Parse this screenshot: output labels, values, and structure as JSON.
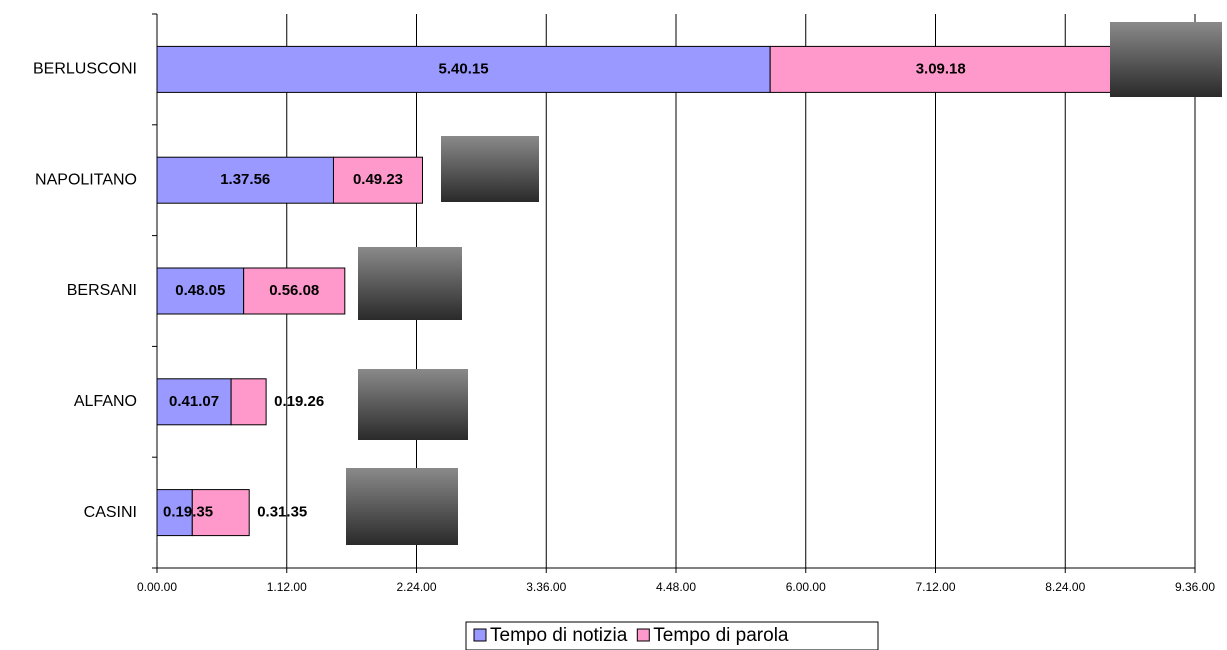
{
  "chart_data": {
    "type": "stacked-bar-horizontal",
    "categories": [
      "BERLUSCONI",
      "NAPOLITANO",
      "BERSANI",
      "ALFANO",
      "CASINI"
    ],
    "series": [
      {
        "name": "Tempo di notizia",
        "color": "#9999ff",
        "values": [
          20415,
          5876,
          2885,
          2467,
          1175
        ],
        "value_labels": [
          "5.40.15",
          "1.37.56",
          "0.48.05",
          "0.41.07",
          "0.19.35"
        ]
      },
      {
        "name": "Tempo di parola",
        "color": "#ff99cc",
        "values": [
          11358,
          2963,
          3368,
          1166,
          1895
        ],
        "value_labels": [
          "3.09.18",
          "0.49.23",
          "0.56.08",
          "0.19.26",
          "0.31.35"
        ]
      }
    ],
    "xlim": [
      0,
      34560
    ],
    "xticks": [
      {
        "value": 0,
        "label": "0.00.00"
      },
      {
        "value": 4320,
        "label": "1.12.00"
      },
      {
        "value": 8640,
        "label": "2.24.00"
      },
      {
        "value": 12960,
        "label": "3.36.00"
      },
      {
        "value": 17280,
        "label": "4.48.00"
      },
      {
        "value": 21600,
        "label": "6.00.00"
      },
      {
        "value": 25920,
        "label": "7.12.00"
      },
      {
        "value": 30240,
        "label": "8.24.00"
      },
      {
        "value": 34560,
        "label": "9.36.00"
      }
    ],
    "grid": true,
    "legend": "bottom"
  }
}
